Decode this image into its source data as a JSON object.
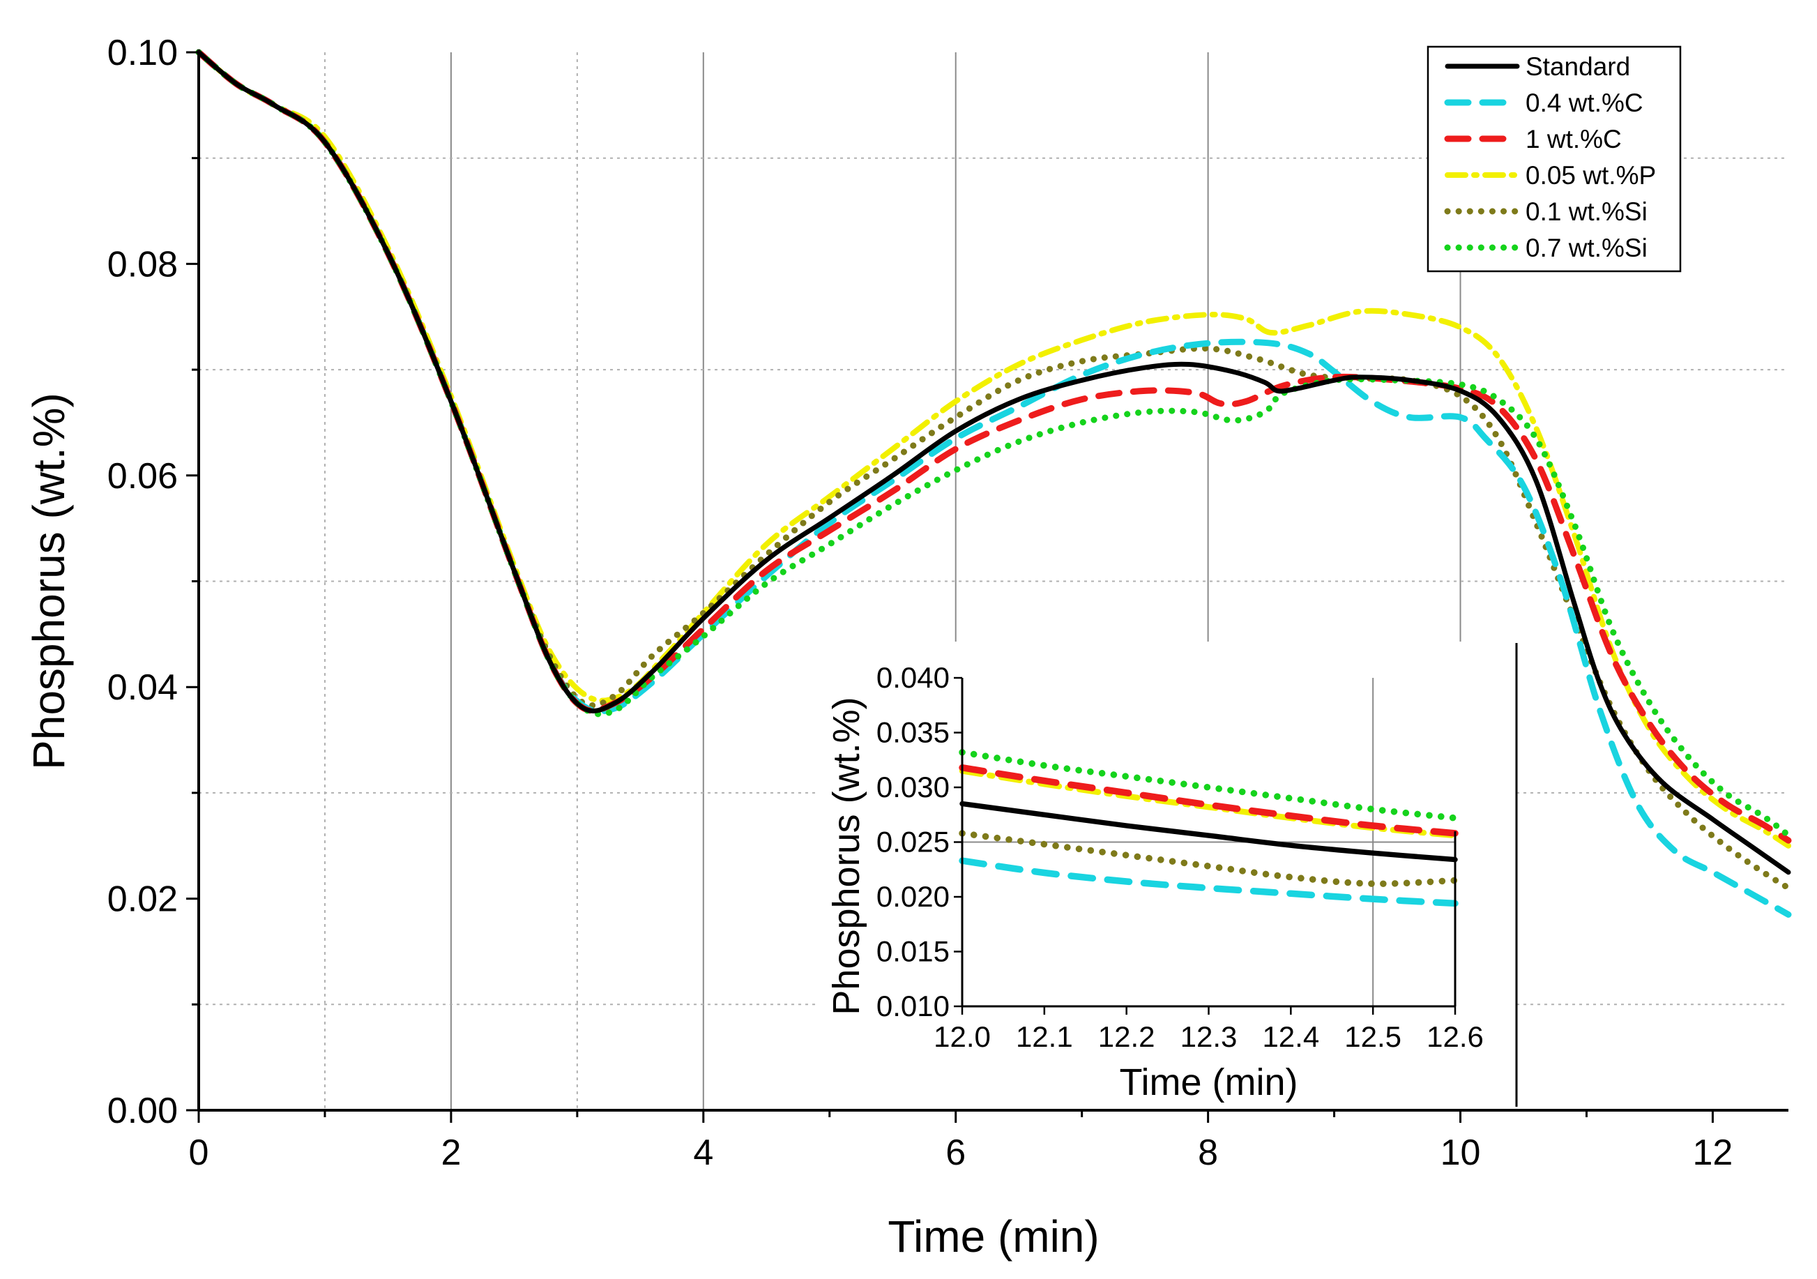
{
  "chart_data": {
    "type": "line",
    "title": "",
    "xlabel": "Time (min)",
    "ylabel": "Phosphorus (wt.%)",
    "xlim": [
      0,
      12.6
    ],
    "ylim": [
      0,
      0.1
    ],
    "x_ticks": [
      "0",
      "2",
      "4",
      "6",
      "8",
      "10",
      "12"
    ],
    "y_ticks": [
      "0.00",
      "0.02",
      "0.04",
      "0.06",
      "0.08",
      "0.10"
    ],
    "legend_position": "top-right",
    "series": [
      {
        "name": "Standard",
        "color": "#000000",
        "style": "solid",
        "points": [
          [
            0,
            0.1
          ],
          [
            0.3,
            0.097
          ],
          [
            0.6,
            0.095
          ],
          [
            1,
            0.0915
          ],
          [
            1.5,
            0.081
          ],
          [
            2,
            0.067
          ],
          [
            2.5,
            0.051
          ],
          [
            2.8,
            0.042
          ],
          [
            3.05,
            0.038
          ],
          [
            3.3,
            0.0385
          ],
          [
            3.6,
            0.0415
          ],
          [
            4,
            0.0465
          ],
          [
            4.5,
            0.052
          ],
          [
            5,
            0.056
          ],
          [
            5.5,
            0.06
          ],
          [
            6,
            0.0642
          ],
          [
            6.5,
            0.0672
          ],
          [
            7,
            0.069
          ],
          [
            7.5,
            0.0702
          ],
          [
            7.85,
            0.0705
          ],
          [
            8.2,
            0.0698
          ],
          [
            8.45,
            0.0688
          ],
          [
            8.55,
            0.068
          ],
          [
            8.7,
            0.0682
          ],
          [
            9,
            0.069
          ],
          [
            9.2,
            0.0693
          ],
          [
            9.6,
            0.069
          ],
          [
            10,
            0.068
          ],
          [
            10.3,
            0.0655
          ],
          [
            10.6,
            0.0595
          ],
          [
            10.9,
            0.048
          ],
          [
            11.1,
            0.0405
          ],
          [
            11.3,
            0.0355
          ],
          [
            11.6,
            0.031
          ],
          [
            12,
            0.0275
          ],
          [
            12.3,
            0.025
          ],
          [
            12.6,
            0.0225
          ]
        ]
      },
      {
        "name": "0.4 wt.%C",
        "color": "#19d4e0",
        "style": "dash",
        "points": [
          [
            0,
            0.1
          ],
          [
            0.3,
            0.097
          ],
          [
            0.6,
            0.095
          ],
          [
            1,
            0.0915
          ],
          [
            1.5,
            0.081
          ],
          [
            2,
            0.067
          ],
          [
            2.5,
            0.051
          ],
          [
            2.8,
            0.042
          ],
          [
            3.05,
            0.0382
          ],
          [
            3.3,
            0.038
          ],
          [
            3.6,
            0.0405
          ],
          [
            4,
            0.045
          ],
          [
            4.5,
            0.0505
          ],
          [
            5,
            0.0555
          ],
          [
            5.5,
            0.0595
          ],
          [
            6,
            0.0635
          ],
          [
            6.5,
            0.0665
          ],
          [
            7,
            0.0695
          ],
          [
            7.5,
            0.0715
          ],
          [
            8,
            0.0725
          ],
          [
            8.5,
            0.0725
          ],
          [
            8.8,
            0.0715
          ],
          [
            9,
            0.0698
          ],
          [
            9.3,
            0.067
          ],
          [
            9.6,
            0.0655
          ],
          [
            10,
            0.0655
          ],
          [
            10.2,
            0.0635
          ],
          [
            10.5,
            0.059
          ],
          [
            10.8,
            0.05
          ],
          [
            11.1,
            0.038
          ],
          [
            11.4,
            0.029
          ],
          [
            11.7,
            0.0245
          ],
          [
            12,
            0.0225
          ],
          [
            12.3,
            0.0205
          ],
          [
            12.6,
            0.0185
          ]
        ]
      },
      {
        "name": "1 wt.%C",
        "color": "#ee1c1c",
        "style": "dash",
        "points": [
          [
            0,
            0.1
          ],
          [
            0.3,
            0.097
          ],
          [
            0.6,
            0.095
          ],
          [
            1,
            0.0915
          ],
          [
            1.5,
            0.081
          ],
          [
            2,
            0.067
          ],
          [
            2.5,
            0.051
          ],
          [
            2.8,
            0.042
          ],
          [
            3.05,
            0.038
          ],
          [
            3.3,
            0.0385
          ],
          [
            3.6,
            0.041
          ],
          [
            4,
            0.0455
          ],
          [
            4.5,
            0.051
          ],
          [
            5,
            0.0548
          ],
          [
            5.5,
            0.0585
          ],
          [
            6,
            0.0625
          ],
          [
            6.5,
            0.0652
          ],
          [
            7,
            0.0672
          ],
          [
            7.5,
            0.068
          ],
          [
            7.9,
            0.0678
          ],
          [
            8.1,
            0.0668
          ],
          [
            8.3,
            0.067
          ],
          [
            8.6,
            0.0685
          ],
          [
            9,
            0.0693
          ],
          [
            9.5,
            0.069
          ],
          [
            10,
            0.0682
          ],
          [
            10.3,
            0.0665
          ],
          [
            10.6,
            0.0615
          ],
          [
            10.9,
            0.0525
          ],
          [
            11.2,
            0.043
          ],
          [
            11.5,
            0.0365
          ],
          [
            11.8,
            0.032
          ],
          [
            12.1,
            0.029
          ],
          [
            12.4,
            0.027
          ],
          [
            12.6,
            0.0255
          ]
        ]
      },
      {
        "name": "0.05 wt.%P",
        "color": "#f2f000",
        "style": "dashdot",
        "points": [
          [
            0,
            0.1
          ],
          [
            0.3,
            0.097
          ],
          [
            0.6,
            0.095
          ],
          [
            1,
            0.092
          ],
          [
            1.5,
            0.0815
          ],
          [
            2,
            0.0675
          ],
          [
            2.5,
            0.0515
          ],
          [
            2.8,
            0.043
          ],
          [
            3.1,
            0.039
          ],
          [
            3.4,
            0.0395
          ],
          [
            3.7,
            0.043
          ],
          [
            4,
            0.047
          ],
          [
            4.5,
            0.0535
          ],
          [
            5,
            0.058
          ],
          [
            5.5,
            0.0625
          ],
          [
            6,
            0.067
          ],
          [
            6.5,
            0.0705
          ],
          [
            7,
            0.0728
          ],
          [
            7.5,
            0.0745
          ],
          [
            8,
            0.0752
          ],
          [
            8.3,
            0.0748
          ],
          [
            8.5,
            0.0735
          ],
          [
            8.8,
            0.0742
          ],
          [
            9.2,
            0.0755
          ],
          [
            9.6,
            0.0752
          ],
          [
            10,
            0.074
          ],
          [
            10.3,
            0.0712
          ],
          [
            10.6,
            0.0645
          ],
          [
            10.9,
            0.0545
          ],
          [
            11.2,
            0.0435
          ],
          [
            11.5,
            0.036
          ],
          [
            11.8,
            0.0315
          ],
          [
            12.1,
            0.0285
          ],
          [
            12.4,
            0.0265
          ],
          [
            12.6,
            0.025
          ]
        ]
      },
      {
        "name": "0.1 wt.%Si",
        "color": "#7e7a1a",
        "style": "dot",
        "points": [
          [
            0,
            0.1
          ],
          [
            0.3,
            0.097
          ],
          [
            0.6,
            0.095
          ],
          [
            1,
            0.0915
          ],
          [
            1.5,
            0.081
          ],
          [
            2,
            0.067
          ],
          [
            2.5,
            0.051
          ],
          [
            2.8,
            0.0425
          ],
          [
            3.05,
            0.0385
          ],
          [
            3.3,
            0.0392
          ],
          [
            3.6,
            0.043
          ],
          [
            4,
            0.047
          ],
          [
            4.5,
            0.0525
          ],
          [
            5,
            0.0575
          ],
          [
            5.5,
            0.0615
          ],
          [
            6,
            0.0655
          ],
          [
            6.5,
            0.069
          ],
          [
            7,
            0.0708
          ],
          [
            7.5,
            0.0715
          ],
          [
            8,
            0.072
          ],
          [
            8.4,
            0.071
          ],
          [
            8.8,
            0.0695
          ],
          [
            9.2,
            0.0692
          ],
          [
            9.6,
            0.069
          ],
          [
            10,
            0.0675
          ],
          [
            10.3,
            0.0635
          ],
          [
            10.6,
            0.0555
          ],
          [
            10.9,
            0.0465
          ],
          [
            11.2,
            0.038
          ],
          [
            11.5,
            0.032
          ],
          [
            11.8,
            0.028
          ],
          [
            12.1,
            0.025
          ],
          [
            12.4,
            0.0225
          ],
          [
            12.6,
            0.021
          ]
        ]
      },
      {
        "name": "0.7 wt.%Si",
        "color": "#15d31c",
        "style": "dot",
        "points": [
          [
            0,
            0.1
          ],
          [
            0.3,
            0.097
          ],
          [
            0.6,
            0.095
          ],
          [
            1,
            0.0915
          ],
          [
            1.5,
            0.081
          ],
          [
            2,
            0.067
          ],
          [
            2.5,
            0.051
          ],
          [
            2.8,
            0.042
          ],
          [
            3.05,
            0.038
          ],
          [
            3.3,
            0.0378
          ],
          [
            3.6,
            0.041
          ],
          [
            4,
            0.0448
          ],
          [
            4.5,
            0.0498
          ],
          [
            5,
            0.0535
          ],
          [
            5.5,
            0.0572
          ],
          [
            6,
            0.0605
          ],
          [
            6.5,
            0.0632
          ],
          [
            7,
            0.065
          ],
          [
            7.5,
            0.066
          ],
          [
            7.9,
            0.066
          ],
          [
            8.2,
            0.0652
          ],
          [
            8.45,
            0.066
          ],
          [
            8.6,
            0.0678
          ],
          [
            9,
            0.069
          ],
          [
            9.5,
            0.069
          ],
          [
            10,
            0.0686
          ],
          [
            10.3,
            0.0672
          ],
          [
            10.6,
            0.0635
          ],
          [
            10.9,
            0.0555
          ],
          [
            11.2,
            0.0455
          ],
          [
            11.5,
            0.0385
          ],
          [
            11.8,
            0.0335
          ],
          [
            12.1,
            0.03
          ],
          [
            12.4,
            0.0278
          ],
          [
            12.6,
            0.026
          ]
        ]
      }
    ],
    "inset": {
      "xlabel": "Time (min)",
      "ylabel": "Phosphorus (wt.%)",
      "xlim": [
        12.0,
        12.6
      ],
      "ylim": [
        0.01,
        0.04
      ],
      "x_ticks": [
        "12.0",
        "12.1",
        "12.2",
        "12.3",
        "12.4",
        "12.5",
        "12.6"
      ],
      "y_ticks": [
        "0.010",
        "0.015",
        "0.020",
        "0.025",
        "0.030",
        "0.035",
        "0.040"
      ],
      "series": [
        {
          "name": "Standard",
          "points": [
            [
              12.0,
              0.0285
            ],
            [
              12.1,
              0.0275
            ],
            [
              12.2,
              0.0265
            ],
            [
              12.3,
              0.0256
            ],
            [
              12.4,
              0.0247
            ],
            [
              12.5,
              0.024
            ],
            [
              12.6,
              0.0234
            ]
          ]
        },
        {
          "name": "0.4 wt.%C",
          "points": [
            [
              12.0,
              0.0233
            ],
            [
              12.1,
              0.0222
            ],
            [
              12.2,
              0.0214
            ],
            [
              12.3,
              0.0208
            ],
            [
              12.4,
              0.0203
            ],
            [
              12.5,
              0.0198
            ],
            [
              12.6,
              0.0194
            ]
          ]
        },
        {
          "name": "1 wt.%C",
          "points": [
            [
              12.0,
              0.0318
            ],
            [
              12.1,
              0.0306
            ],
            [
              12.2,
              0.0295
            ],
            [
              12.3,
              0.0284
            ],
            [
              12.4,
              0.0274
            ],
            [
              12.5,
              0.0265
            ],
            [
              12.6,
              0.0258
            ]
          ]
        },
        {
          "name": "0.05 wt.%P",
          "points": [
            [
              12.0,
              0.0315
            ],
            [
              12.1,
              0.0303
            ],
            [
              12.2,
              0.0292
            ],
            [
              12.3,
              0.0282
            ],
            [
              12.4,
              0.0272
            ],
            [
              12.5,
              0.0263
            ],
            [
              12.6,
              0.0256
            ]
          ]
        },
        {
          "name": "0.1 wt.%Si",
          "points": [
            [
              12.0,
              0.0258
            ],
            [
              12.1,
              0.0248
            ],
            [
              12.2,
              0.0238
            ],
            [
              12.3,
              0.0228
            ],
            [
              12.4,
              0.0218
            ],
            [
              12.5,
              0.0212
            ],
            [
              12.6,
              0.0215
            ]
          ]
        },
        {
          "name": "0.7 wt.%Si",
          "points": [
            [
              12.0,
              0.0332
            ],
            [
              12.1,
              0.032
            ],
            [
              12.2,
              0.031
            ],
            [
              12.3,
              0.03
            ],
            [
              12.4,
              0.029
            ],
            [
              12.5,
              0.028
            ],
            [
              12.6,
              0.0272
            ]
          ]
        }
      ]
    }
  }
}
